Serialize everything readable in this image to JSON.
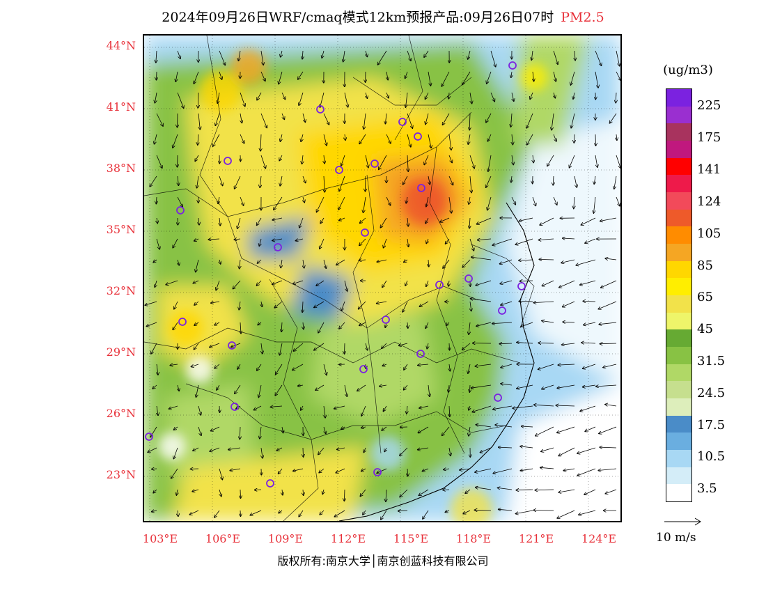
{
  "title": {
    "main": "2024年09月26日WRF/cmaq模式12km预报产品:09月26日07时",
    "product": "PM2.5"
  },
  "map": {
    "lat_labels": [
      "44°N",
      "41°N",
      "38°N",
      "35°N",
      "32°N",
      "29°N",
      "26°N",
      "23°N"
    ],
    "lon_labels": [
      "103°E",
      "106°E",
      "109°E",
      "112°E",
      "115°E",
      "118°E",
      "121°E",
      "124°E"
    ],
    "lat_range": [
      21,
      44.5
    ],
    "lon_range": [
      102.7,
      124
    ]
  },
  "legend": {
    "unit": "(ug/m3)",
    "colors": [
      "#7b22e0",
      "#9a2fd0",
      "#a8335e",
      "#c0187e",
      "#ff0000",
      "#ee1a4a",
      "#f24a5a",
      "#ee5a2a",
      "#ff8c00",
      "#f5a623",
      "#ffd700",
      "#ffee00",
      "#f2e24a",
      "#eef56a",
      "#66aa33",
      "#88c244",
      "#b0d866",
      "#c6df8e",
      "#ddeebb",
      "#4a8cc8",
      "#6aaee0",
      "#a8d8f4",
      "#d4edf8",
      "#ffffff"
    ],
    "labels": [
      "225",
      "175",
      "141",
      "124",
      "105",
      "85",
      "65",
      "45",
      "31.5",
      "24.5",
      "17.5",
      "10.5",
      "3.5"
    ]
  },
  "wind_reference": {
    "label": "10 m/s"
  },
  "copyright": "版权所有:南京大学│南京创蓝科技有限公司"
}
